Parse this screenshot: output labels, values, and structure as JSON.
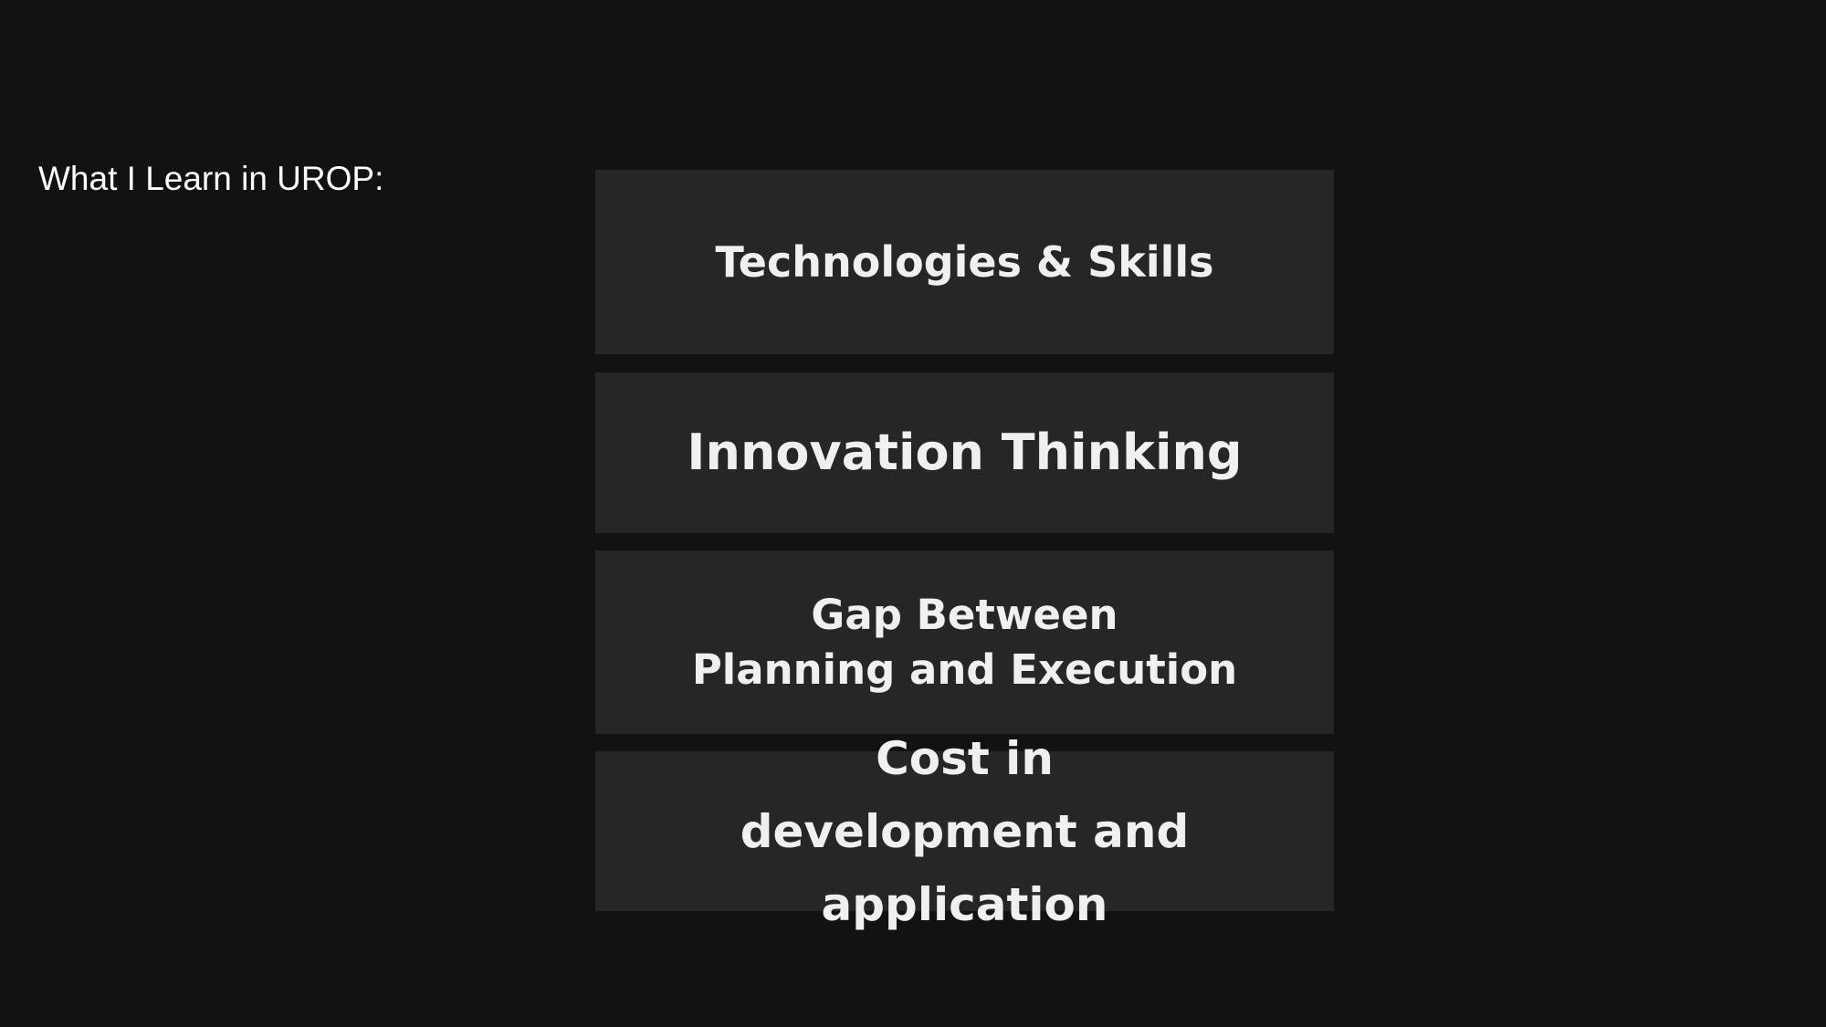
{
  "slide": {
    "title": "What I Learn in UROP:",
    "items": [
      {
        "lines": [
          "Technologies & Skills"
        ]
      },
      {
        "lines": [
          "Innovation Thinking"
        ]
      },
      {
        "lines": [
          "Gap Between",
          "Planning and Execution"
        ]
      },
      {
        "lines": [
          "Cost in",
          "development and application"
        ]
      }
    ]
  },
  "colors": {
    "background": "#121212",
    "box": "#262626",
    "text": "#f0f0f0"
  }
}
